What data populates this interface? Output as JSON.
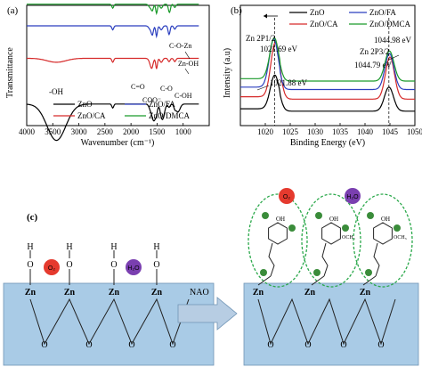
{
  "chart_data": [
    {
      "type": "line",
      "panel_label": "(a)",
      "xlabel": "Wavenumber (cm⁻¹)",
      "ylabel": "Transmittance",
      "x_reversed": true,
      "xlim": [
        4000,
        500
      ],
      "xticks": [
        4000,
        3500,
        3000,
        2500,
        2000,
        1500,
        1000
      ],
      "series": [
        {
          "name": "ZnO",
          "color": "#000000",
          "base": 0.15
        },
        {
          "name": "ZnO/FA",
          "color": "#2b3fbf",
          "base": 0.8
        },
        {
          "name": "ZnO/CA",
          "color": "#d62a2a",
          "base": 0.53
        },
        {
          "name": "ZnO/DMCA",
          "color": "#1a9a2a",
          "base": 0.98
        }
      ],
      "annotations": [
        "-OH",
        "C=O",
        "COO⁻",
        "C-O",
        "C-OH",
        "C-O-Zn",
        "Zn-OH"
      ],
      "legend": [
        "ZnO",
        "ZnO/FA",
        "ZnO/CA",
        "ZnO/DMCA"
      ]
    },
    {
      "type": "line",
      "panel_label": "(b)",
      "xlabel": "Binding Energy (eV)",
      "ylabel": "Intensity (a.u)",
      "xlim": [
        1015,
        1050
      ],
      "xticks": [
        1020,
        1025,
        1030,
        1035,
        1040,
        1045,
        1050
      ],
      "peak_positions": [
        1021.88,
        1044.79
      ],
      "series": [
        {
          "name": "ZnO",
          "color": "#000000"
        },
        {
          "name": "ZnO/CA",
          "color": "#d62a2a"
        },
        {
          "name": "ZnO/FA",
          "color": "#2b3fbf"
        },
        {
          "name": "ZnO/DMCA",
          "color": "#1a9a2a"
        }
      ],
      "annotations": [
        "Zn 2P1/2",
        "1021.69 eV",
        "1021.88 eV",
        "Zn 2P3/2",
        "1044.98 eV",
        "1044.79 eV"
      ],
      "legend": [
        "ZnO",
        "ZnO/FA",
        "ZnO/CA",
        "ZnO/DMCA"
      ]
    }
  ],
  "schematic": {
    "panel_label": "(c)",
    "arrow_label": "NAO",
    "zn": "Zn",
    "o": "O",
    "h": "H",
    "o2": "O₂",
    "h2o": "H₂O",
    "oh": "OH",
    "och3": "OCH₃"
  }
}
